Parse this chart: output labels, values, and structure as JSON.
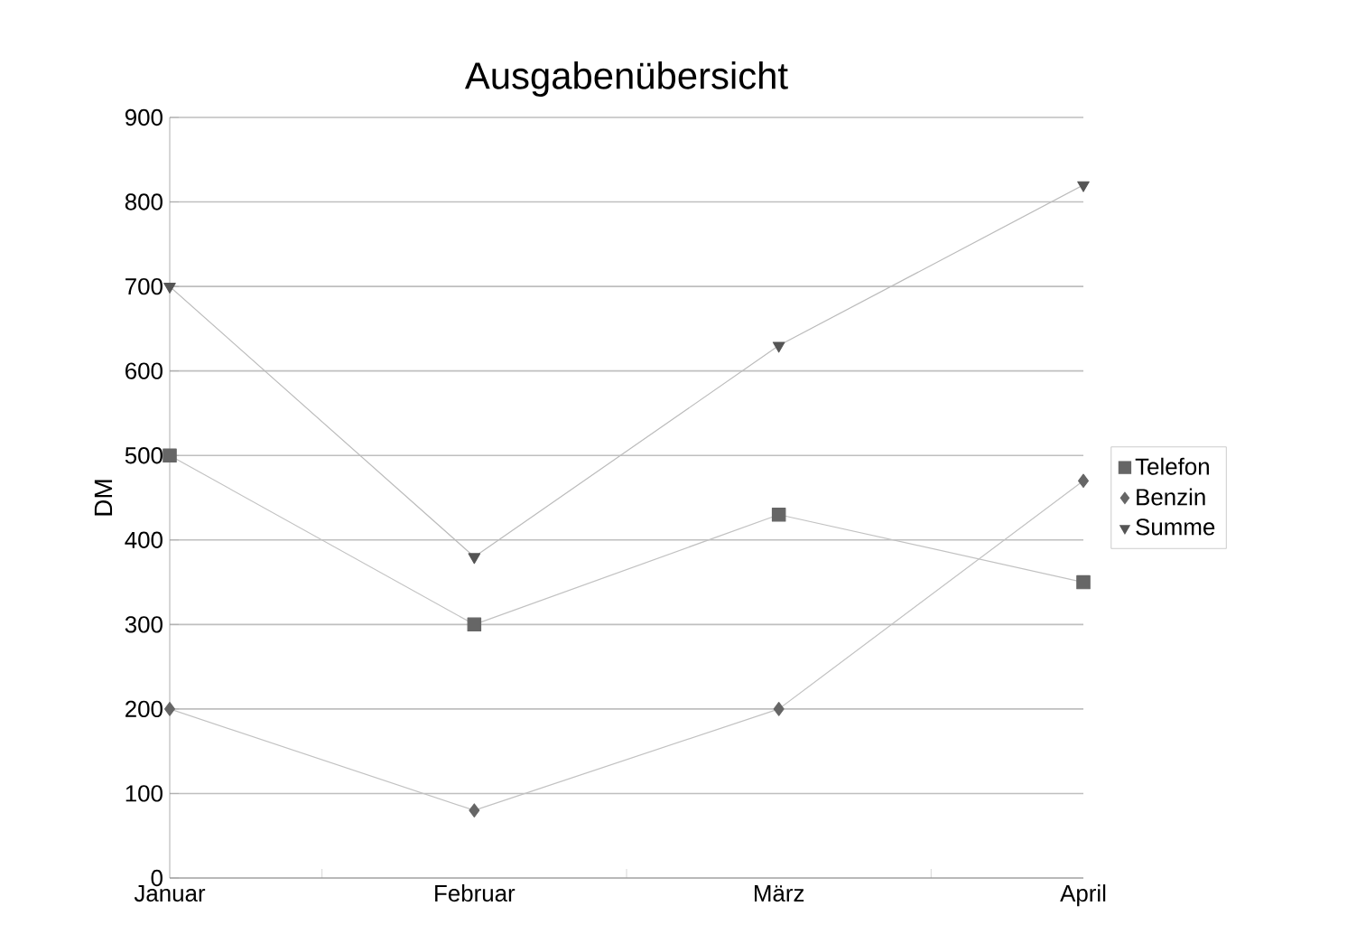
{
  "chart_data": {
    "type": "line",
    "title": "Ausgabenübersicht",
    "ylabel": "DM",
    "categories": [
      "Januar",
      "Februar",
      "März",
      "April"
    ],
    "series": [
      {
        "name": "Telefon",
        "color": "#666666",
        "marker": "square",
        "values": [
          500,
          300,
          430,
          350
        ]
      },
      {
        "name": "Benzin",
        "color": "#666666",
        "marker": "diamond",
        "values": [
          200,
          80,
          200,
          470
        ]
      },
      {
        "name": "Summe",
        "color": "#555555",
        "marker": "triangle",
        "values": [
          700,
          380,
          630,
          820
        ]
      }
    ],
    "ylim": [
      0,
      900
    ],
    "yticks": [
      0,
      100,
      200,
      300,
      400,
      500,
      600,
      700,
      800,
      900
    ],
    "grid": "y",
    "legend": "right",
    "line_style": "solid"
  }
}
